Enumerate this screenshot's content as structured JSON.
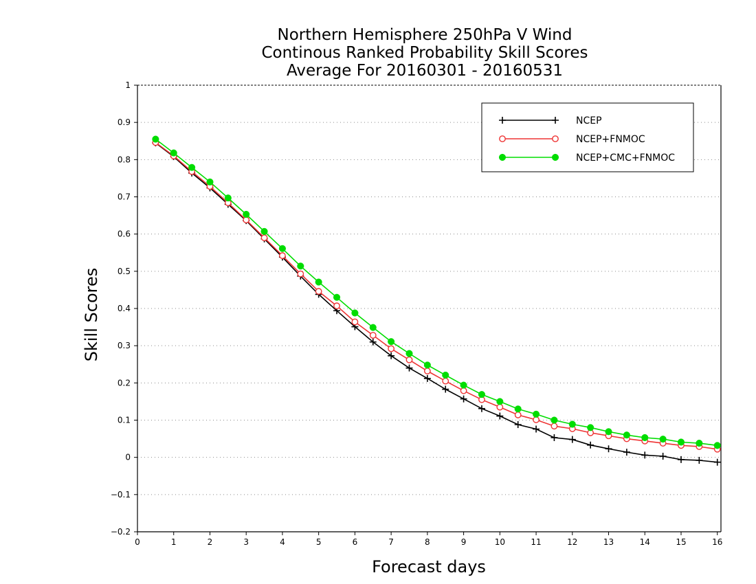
{
  "chart_data": {
    "type": "line",
    "title_lines": [
      "Northern Hemisphere 250hPa V Wind",
      "Continous Ranked Probability Skill Scores",
      "Average For 20160301 - 20160531"
    ],
    "xlabel": "Forecast days",
    "ylabel": "Skill Scores",
    "xlim": [
      0,
      16.1
    ],
    "ylim": [
      -0.2,
      1
    ],
    "x_ticks": [
      0,
      1,
      2,
      3,
      4,
      5,
      6,
      7,
      8,
      9,
      10,
      11,
      12,
      13,
      14,
      15,
      16
    ],
    "y_ticks": [
      -0.2,
      -0.1,
      0,
      0.1,
      0.2,
      0.3,
      0.4,
      0.5,
      0.6,
      0.7,
      0.8,
      0.9,
      1
    ],
    "grid": "dotted horizontal",
    "legend_position": "top-right",
    "x": [
      0.5,
      1,
      1.5,
      2,
      2.5,
      3,
      3.5,
      4,
      4.5,
      5,
      5.5,
      6,
      6.5,
      7,
      7.5,
      8,
      8.5,
      9,
      9.5,
      10,
      10.5,
      11,
      11.5,
      12,
      12.5,
      13,
      13.5,
      14,
      14.5,
      15,
      15.5,
      16
    ],
    "series": [
      {
        "name": "NCEP",
        "color": "#000000",
        "marker": "plus",
        "values": [
          0.845,
          0.808,
          0.764,
          0.724,
          0.68,
          0.636,
          0.587,
          0.538,
          0.487,
          0.438,
          0.394,
          0.351,
          0.31,
          0.273,
          0.24,
          0.212,
          0.183,
          0.157,
          0.131,
          0.111,
          0.088,
          0.076,
          0.053,
          0.048,
          0.033,
          0.023,
          0.014,
          0.006,
          0.003,
          -0.006,
          -0.008,
          -0.013
        ]
      },
      {
        "name": "NCEP+FNMOC",
        "color": "#ee3333",
        "marker": "open-circle",
        "values": [
          0.846,
          0.81,
          0.768,
          0.728,
          0.684,
          0.638,
          0.59,
          0.542,
          0.493,
          0.446,
          0.407,
          0.364,
          0.328,
          0.292,
          0.262,
          0.232,
          0.205,
          0.179,
          0.155,
          0.135,
          0.114,
          0.101,
          0.084,
          0.077,
          0.066,
          0.058,
          0.05,
          0.044,
          0.038,
          0.032,
          0.029,
          0.022
        ]
      },
      {
        "name": "NCEP+CMC+FNMOC",
        "color": "#00dd00",
        "marker": "filled-circle",
        "values": [
          0.855,
          0.818,
          0.779,
          0.74,
          0.697,
          0.653,
          0.607,
          0.561,
          0.514,
          0.471,
          0.43,
          0.388,
          0.349,
          0.311,
          0.279,
          0.248,
          0.221,
          0.194,
          0.169,
          0.15,
          0.13,
          0.116,
          0.1,
          0.089,
          0.08,
          0.069,
          0.06,
          0.053,
          0.049,
          0.041,
          0.038,
          0.032
        ]
      }
    ]
  }
}
